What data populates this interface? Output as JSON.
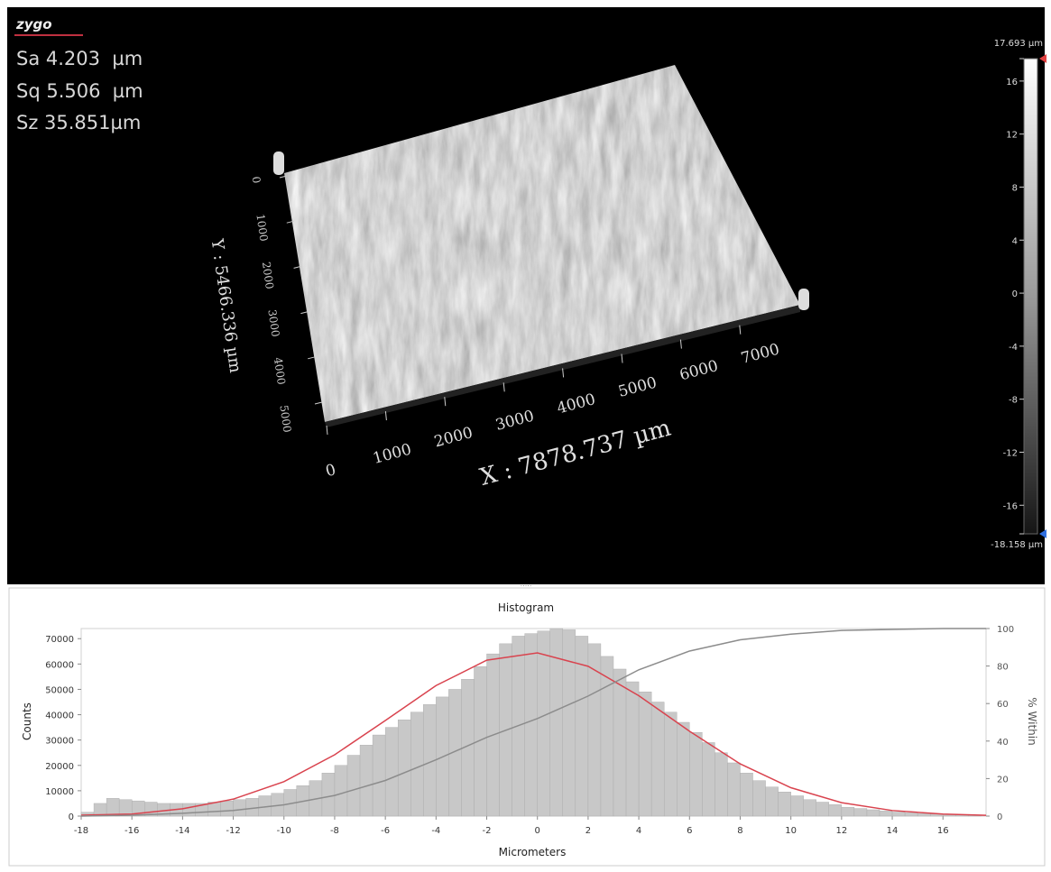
{
  "header": {
    "logo": "zygo",
    "stats": [
      "Sa 4.203  µm",
      "Sq 5.506  µm",
      "Sz 35.851µm"
    ]
  },
  "surface_view": {
    "x_axis_label": "X : 7878.737 µm",
    "y_axis_label": "Y : 5466.336 µm",
    "xticks": [
      0,
      1000,
      2000,
      3000,
      4000,
      5000,
      6000,
      7000
    ],
    "yticks": [
      0,
      1000,
      2000,
      3000,
      4000,
      5000
    ]
  },
  "color_bar": {
    "range": [
      {
        "value": -18.158,
        "label": "-18.158 µm"
      },
      {
        "value": 17.693,
        "label": "17.693 µm"
      }
    ],
    "ticks": [
      16,
      12,
      8,
      4,
      0,
      -4,
      -8,
      -12,
      -16
    ]
  },
  "chart_data": {
    "type": "histogram",
    "title": "Histogram",
    "x_label": "Micrometers",
    "y_label": "Counts",
    "y2_label": "% Within",
    "color": "#c8c8c8",
    "bins": [
      -18,
      -17.5,
      -17,
      -16.5,
      -16,
      -15.5,
      -15,
      -14.5,
      -14,
      -13.5,
      -13,
      -12.5,
      -12,
      -11.5,
      -11,
      -10.5,
      -10,
      -9.5,
      -9,
      -8.5,
      -8,
      -7.5,
      -7,
      -6.5,
      -6,
      -5.5,
      -5,
      -4.5,
      -4,
      -3.5,
      -3,
      -2.5,
      -2,
      -1.5,
      -1,
      -0.5,
      0,
      0.5,
      1,
      1.5,
      2,
      2.5,
      3,
      3.5,
      4,
      4.5,
      5,
      5.5,
      6,
      6.5,
      7,
      7.5,
      8,
      8.5,
      9,
      9.5,
      10,
      10.5,
      11,
      11.5,
      12,
      12.5,
      13,
      13.5,
      14,
      14.5,
      15,
      15.5,
      16,
      16.5,
      17,
      17.5
    ],
    "values": [
      1500,
      5000,
      7000,
      6500,
      6000,
      5500,
      5000,
      5000,
      5000,
      5000,
      5500,
      6000,
      6500,
      7000,
      8000,
      9000,
      10500,
      12000,
      14000,
      17000,
      20000,
      24000,
      28000,
      32000,
      35000,
      38000,
      41000,
      44000,
      47000,
      50000,
      54000,
      59000,
      64000,
      68000,
      71000,
      72000,
      73000,
      74000,
      73500,
      71000,
      68000,
      63000,
      58000,
      53000,
      49000,
      45000,
      41000,
      37000,
      33000,
      29000,
      25000,
      21000,
      17000,
      14000,
      11500,
      9500,
      8000,
      6500,
      5500,
      4500,
      3500,
      3000,
      2500,
      2000,
      1600,
      1300,
      1000,
      800,
      600,
      500,
      400
    ],
    "lines": [
      {
        "color": "#d9434e",
        "axis": "y",
        "x": [
          -18,
          -16,
          -14,
          -12,
          -10,
          -8,
          -6,
          -4,
          -2,
          0,
          2,
          4,
          6,
          8,
          10,
          12,
          14,
          16,
          17.7
        ],
        "values": [
          364,
          800,
          2900,
          6700,
          13600,
          24200,
          37700,
          51500,
          61500,
          64400,
          59100,
          47500,
          33500,
          20600,
          11200,
          5300,
          2200,
          800,
          300
        ]
      },
      {
        "color": "#8c8c8c",
        "axis": "y2",
        "x": [
          -18,
          -16,
          -14,
          -12,
          -10,
          -8,
          -6,
          -4,
          -2,
          0,
          2,
          4,
          6,
          8,
          10,
          12,
          14,
          16,
          17.7
        ],
        "values": [
          0,
          0.5,
          1.5,
          3,
          6,
          11,
          19,
          30,
          42,
          52,
          64,
          78,
          88,
          94,
          97,
          99,
          99.5,
          100,
          100
        ]
      }
    ],
    "xlim": [
      -18,
      17.7
    ],
    "xticks": [
      -18,
      -16,
      -14,
      -12,
      -10,
      -8,
      -6,
      -4,
      -2,
      0,
      2,
      4,
      6,
      8,
      10,
      12,
      14,
      16
    ],
    "ylim": [
      0,
      74000
    ],
    "yticks": [
      0,
      10000,
      20000,
      30000,
      40000,
      50000,
      60000,
      70000
    ],
    "y2lim": [
      0,
      100
    ],
    "y2ticks": [
      0,
      20,
      40,
      60,
      80,
      100
    ]
  }
}
